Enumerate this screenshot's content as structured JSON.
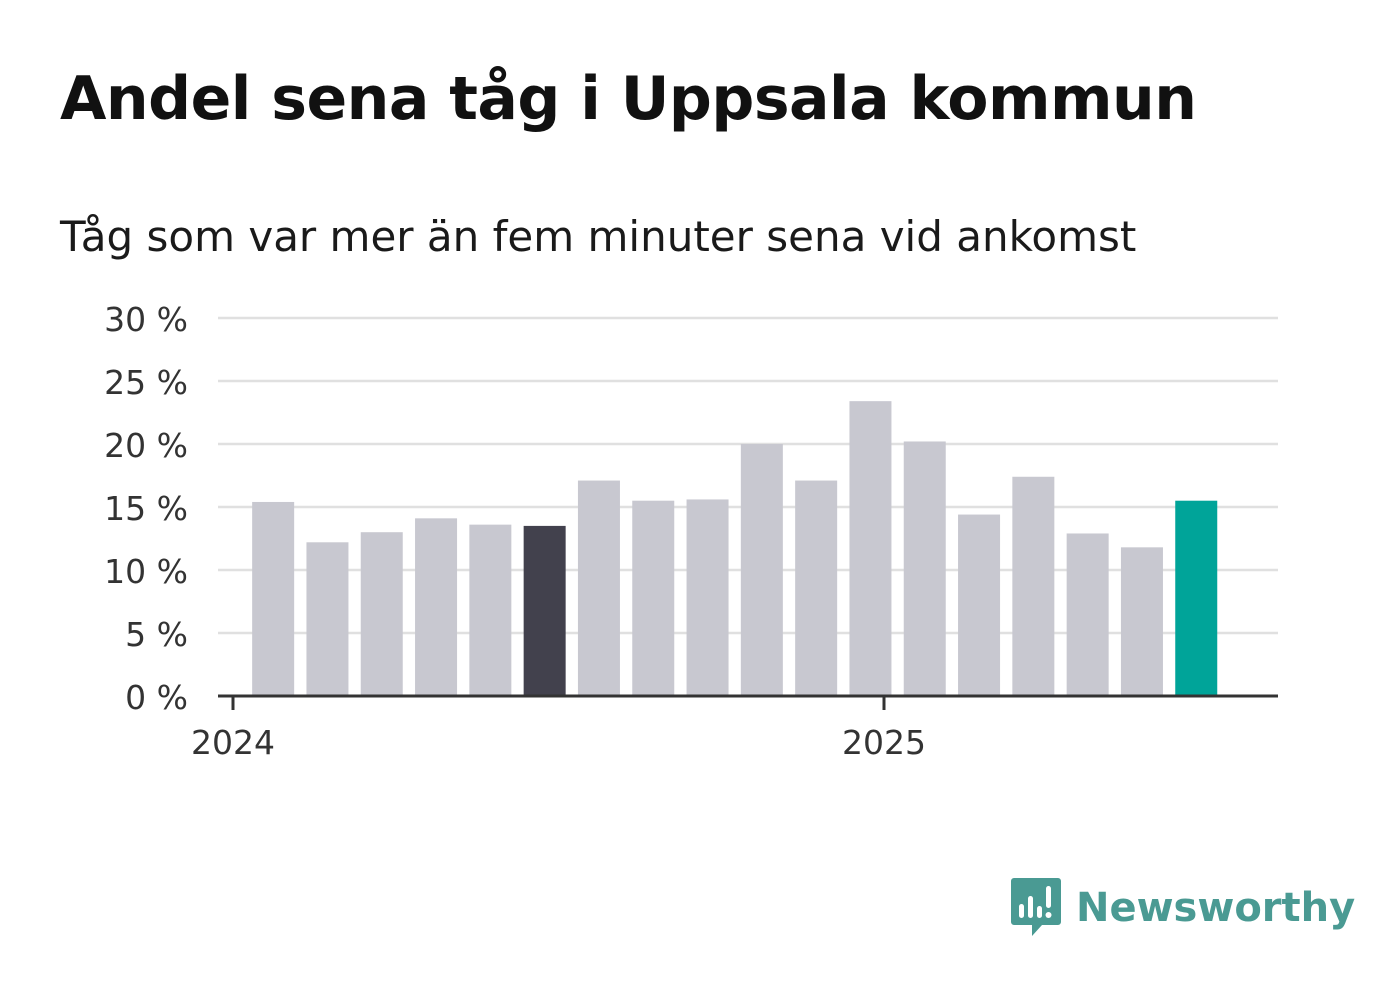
{
  "header": {
    "title": "Andel sena tåg i Uppsala kommun",
    "subtitle": "Tåg som var mer än fem minuter sena vid ankomst"
  },
  "brand": {
    "name": "Newsworthy"
  },
  "colors": {
    "bar_default": "#c8c8d0",
    "bar_highlight_dark": "#42414d",
    "bar_highlight_latest": "#00a499",
    "gridline": "#e0e0e0",
    "axis": "#333333",
    "brand": "#4a9a93"
  },
  "chart_data": {
    "type": "bar",
    "categories": [
      "2024-01",
      "2024-02",
      "2024-03",
      "2024-04",
      "2024-05",
      "2024-06",
      "2024-07",
      "2024-08",
      "2024-09",
      "2024-10",
      "2024-11",
      "2024-12",
      "2025-01",
      "2025-02",
      "2025-03",
      "2025-04",
      "2025-05",
      "2025-06"
    ],
    "values": [
      15.4,
      12.2,
      13.0,
      14.1,
      13.6,
      13.5,
      17.1,
      15.5,
      15.6,
      20.0,
      17.1,
      23.4,
      20.2,
      14.4,
      17.4,
      12.9,
      11.8,
      15.5
    ],
    "highlight": {
      "2024-06": "dark",
      "2025-06": "latest"
    },
    "xtick_labels": [
      {
        "category": "2024-01",
        "label": "2024"
      },
      {
        "category": "2025-01",
        "label": "2025"
      }
    ],
    "yticks": [
      0,
      5,
      10,
      15,
      20,
      25,
      30
    ],
    "ytick_labels": [
      "0 %",
      "5 %",
      "10 %",
      "15 %",
      "20 %",
      "25 %",
      "30 %"
    ],
    "ylim": [
      0,
      30
    ],
    "xlabel": "",
    "ylabel": "",
    "grid": true,
    "legend": false
  }
}
